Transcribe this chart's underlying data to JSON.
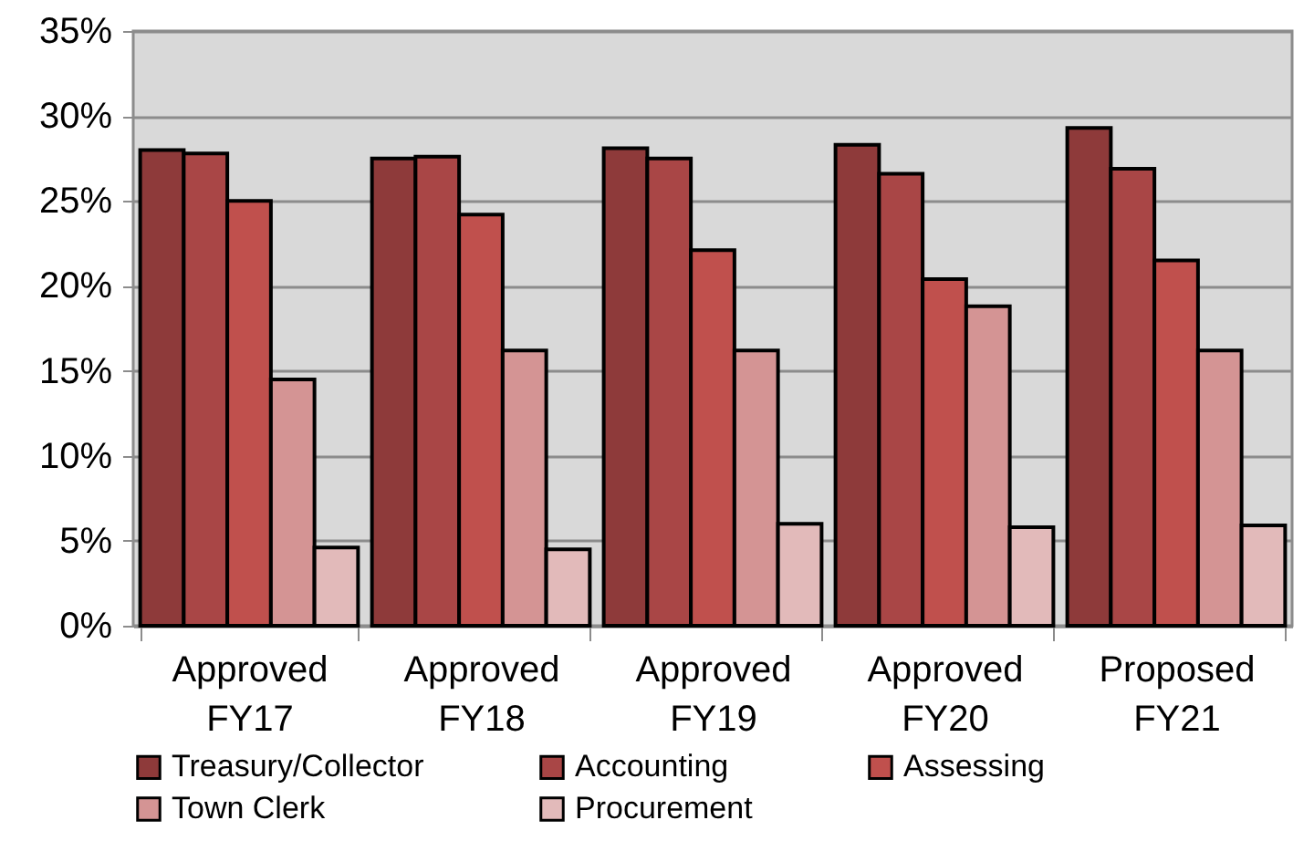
{
  "chart_data": {
    "type": "bar",
    "categories": [
      "Approved FY17",
      "Approved FY18",
      "Approved FY19",
      "Approved FY20",
      "Proposed FY21"
    ],
    "series": [
      {
        "name": "Treasury/Collector",
        "color": "#8e3a3a",
        "values": [
          28.0,
          27.5,
          28.1,
          28.3,
          29.3
        ]
      },
      {
        "name": "Accounting",
        "color": "#a94646",
        "values": [
          27.8,
          27.6,
          27.5,
          26.6,
          26.9
        ]
      },
      {
        "name": "Assessing",
        "color": "#c0504d",
        "values": [
          25.0,
          24.2,
          22.1,
          20.4,
          21.5
        ]
      },
      {
        "name": "Town Clerk",
        "color": "#d49494",
        "values": [
          14.5,
          16.2,
          16.2,
          18.8,
          16.2
        ]
      },
      {
        "name": "Procurement",
        "color": "#e2baba",
        "values": [
          4.6,
          4.5,
          6.0,
          5.8,
          5.9
        ]
      }
    ],
    "ylim": [
      0,
      35
    ],
    "yticks": [
      {
        "value": 0,
        "label": "0%"
      },
      {
        "value": 5,
        "label": "5%"
      },
      {
        "value": 10,
        "label": "10%"
      },
      {
        "value": 15,
        "label": "15%"
      },
      {
        "value": 20,
        "label": "20%"
      },
      {
        "value": 25,
        "label": "25%"
      },
      {
        "value": 30,
        "label": "30%"
      },
      {
        "value": 35,
        "label": "35%"
      }
    ],
    "grid": "y",
    "legend": "bottom"
  }
}
